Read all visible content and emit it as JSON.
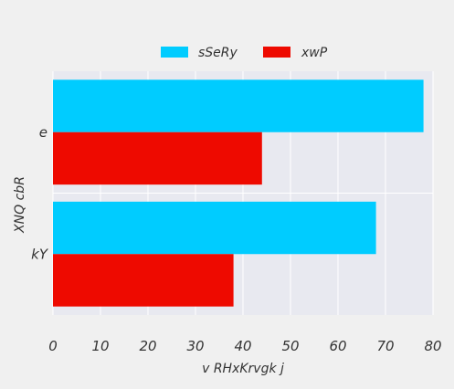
{
  "chart_data": {
    "type": "bar",
    "orientation": "horizontal",
    "categories": [
      "e",
      "kY"
    ],
    "series": [
      {
        "name": "sSeRy",
        "values": [
          78,
          68
        ],
        "color": "#00ccff"
      },
      {
        "name": "xwP",
        "values": [
          44,
          38
        ],
        "color": "#ee0a00"
      }
    ],
    "xlabel": "v RHxKrvgk j",
    "ylabel": "XNQ  cbR",
    "xlim": [
      0,
      80
    ],
    "xticks": [
      "0",
      "10",
      "20",
      "30",
      "40",
      "50",
      "60",
      "70",
      "80"
    ],
    "grid": true,
    "legend": "top-center",
    "plot_background": "#e8e9f0"
  }
}
